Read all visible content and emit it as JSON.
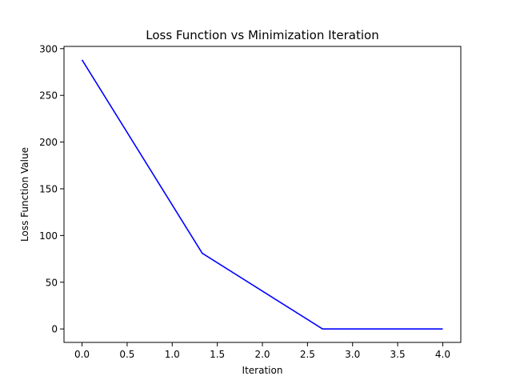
{
  "chart_data": {
    "type": "line",
    "title": "Loss Function vs Minimization Iteration",
    "xlabel": "Iteration",
    "ylabel": "Loss Function Value",
    "xlim": [
      -0.2,
      4.2
    ],
    "ylim": [
      -14.4,
      302.4
    ],
    "x_ticks": [
      0.0,
      0.5,
      1.0,
      1.5,
      2.0,
      2.5,
      3.0,
      3.5,
      4.0
    ],
    "x_tick_labels": [
      "0.0",
      "0.5",
      "1.0",
      "1.5",
      "2.0",
      "2.5",
      "3.0",
      "3.5",
      "4.0"
    ],
    "y_ticks": [
      0,
      50,
      100,
      150,
      200,
      250,
      300
    ],
    "y_tick_labels": [
      "0",
      "50",
      "100",
      "150",
      "200",
      "250",
      "300"
    ],
    "grid": false,
    "series": [
      {
        "color": "#0000ff",
        "x": [
          0.0,
          1.333,
          2.667,
          4.0
        ],
        "y": [
          288,
          81,
          0,
          0
        ]
      }
    ]
  }
}
